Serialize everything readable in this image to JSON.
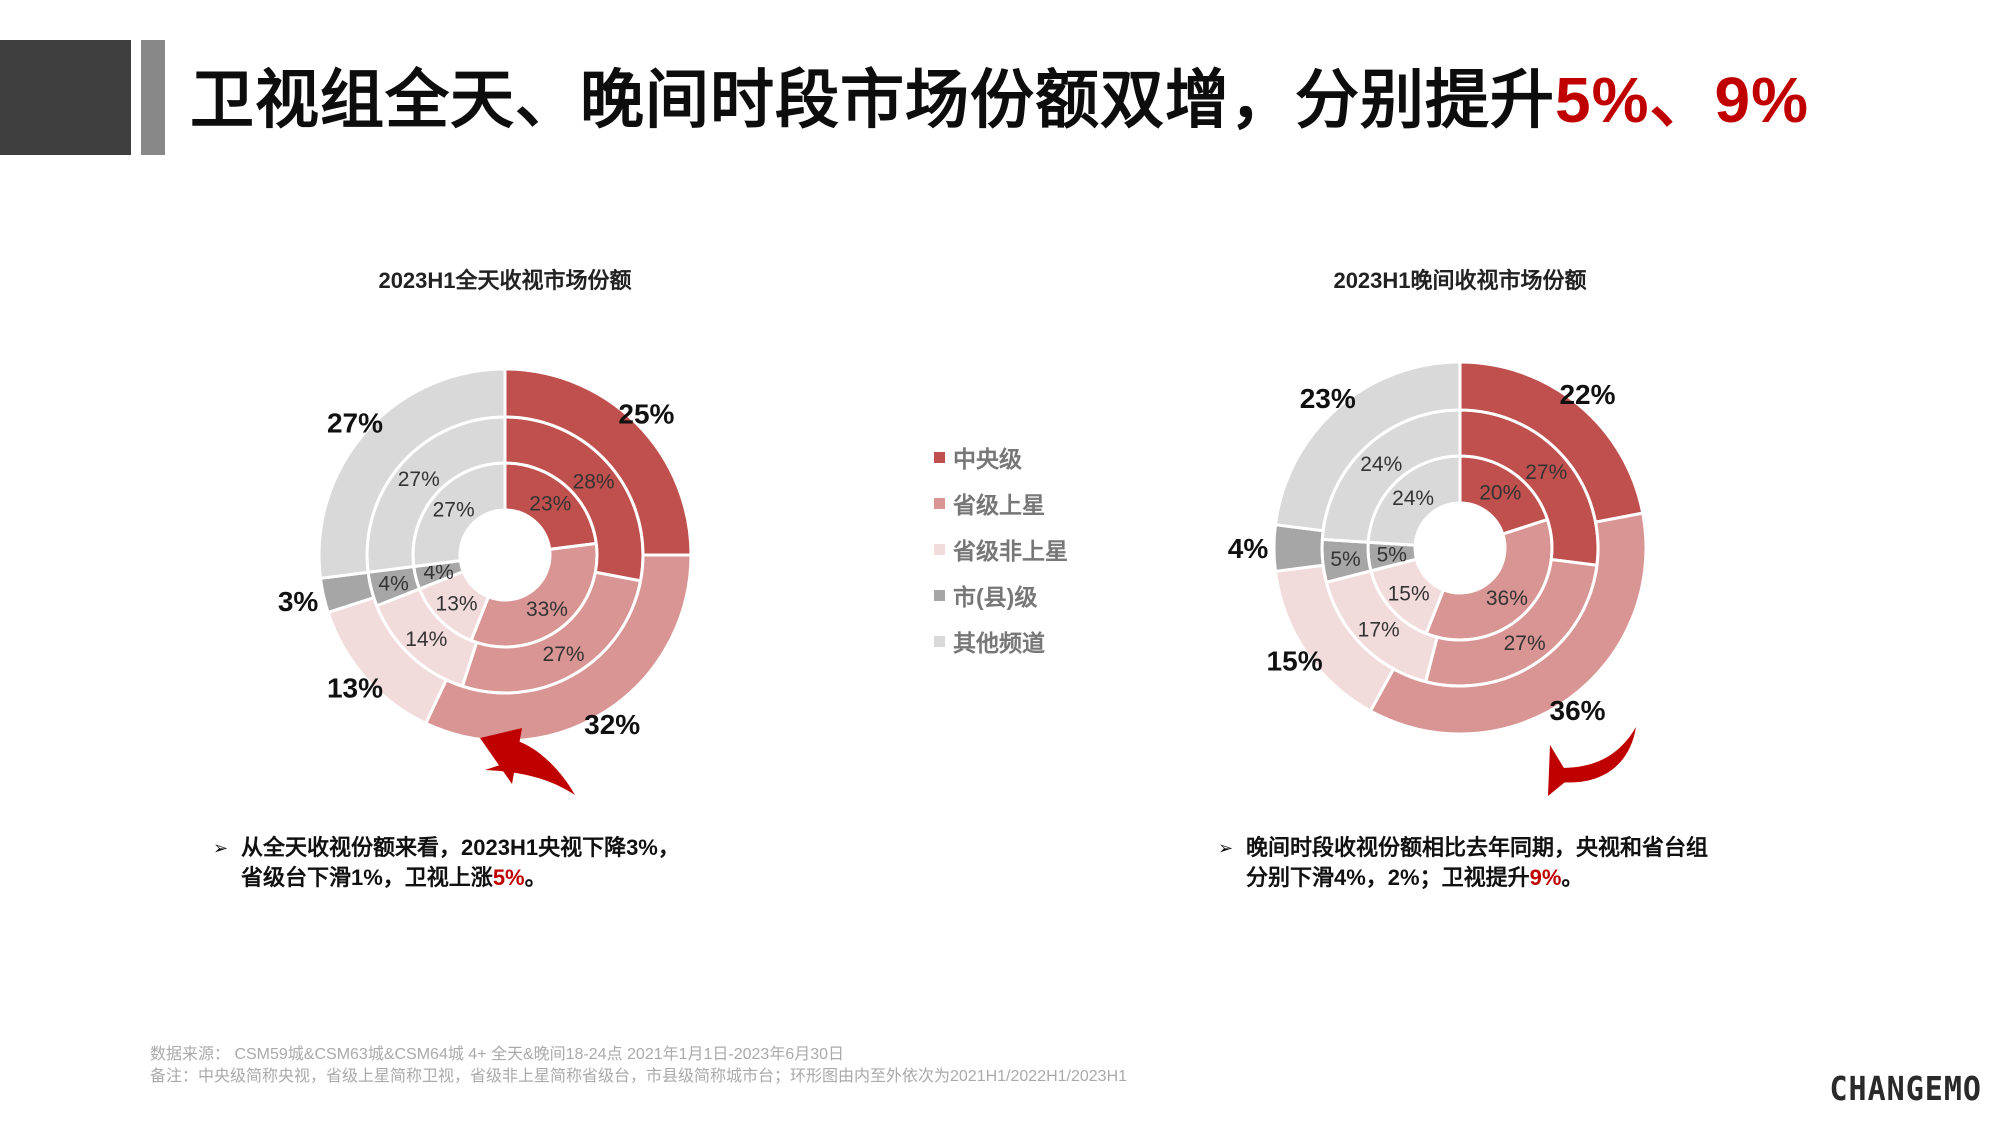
{
  "title": {
    "main": "卫视组全天、晚间时段市场份额双增，分别提升",
    "highlight": "5%、9%"
  },
  "legend": [
    {
      "label": "中央级",
      "color": "#c0504d"
    },
    {
      "label": "省级上星",
      "color": "#d99594"
    },
    {
      "label": "省级非上星",
      "color": "#f2dcdb"
    },
    {
      "label": "市(县)级",
      "color": "#a6a6a6"
    },
    {
      "label": "其他频道",
      "color": "#d9d9d9"
    }
  ],
  "chart_data": [
    {
      "type": "donut",
      "title": "2023H1全天收视市场份额",
      "categories": [
        "中央级",
        "省级上星",
        "省级非上星",
        "市(县)级",
        "其他频道"
      ],
      "rings": [
        {
          "name": "2021H1",
          "values": [
            23,
            33,
            13,
            4,
            27
          ],
          "labels": [
            "23%",
            "33%",
            "13%",
            "4%",
            "27%"
          ]
        },
        {
          "name": "2022H1",
          "values": [
            28,
            27,
            14,
            4,
            27
          ],
          "labels": [
            "28%",
            "27%",
            "14%",
            "4%",
            "27%"
          ]
        },
        {
          "name": "2023H1",
          "values": [
            25,
            32,
            13,
            3,
            27
          ],
          "labels": [
            "25%",
            "32%",
            "13%",
            "3%",
            "27%"
          ]
        }
      ]
    },
    {
      "type": "donut",
      "title": "2023H1晚间收视市场份额",
      "categories": [
        "中央级",
        "省级上星",
        "省级非上星",
        "市(县)级",
        "其他频道"
      ],
      "rings": [
        {
          "name": "2021H1",
          "values": [
            20,
            36,
            15,
            5,
            24
          ],
          "labels": [
            "20%",
            "36%",
            "15%",
            "5%",
            "24%"
          ]
        },
        {
          "name": "2022H1",
          "values": [
            27,
            27,
            17,
            5,
            24
          ],
          "labels": [
            "27%",
            "27%",
            "17%",
            "5%",
            "24%"
          ]
        },
        {
          "name": "2023H1",
          "values": [
            22,
            36,
            15,
            4,
            23
          ],
          "labels": [
            "22%",
            "36%",
            "15%",
            "4%",
            "23%"
          ]
        }
      ]
    }
  ],
  "notes": [
    {
      "bullet": "➢",
      "line1": "从全天收视份额来看，2023H1央视下降3%，",
      "line2_pre": "省级台下滑1%，卫视上涨",
      "line2_hl": "5%",
      "line2_post": "。"
    },
    {
      "bullet": "➢",
      "line1": "晚间时段收视份额相比去年同期，央视和省台组",
      "line2_pre": "分别下滑4%，2%；卫视提升",
      "line2_hl": "9%",
      "line2_post": "。"
    }
  ],
  "footer": {
    "source": "数据来源：  CSM59城&CSM63城&CSM64城  4+  全天&晚间18-24点   2021年1月1日-2023年6月30日",
    "remark": "备注：中央级简称央视，省级上星简称卫视，省级非上星简称省级台，市县级简称城市台；环形图由内至外依次为2021H1/2022H1/2023H1"
  },
  "logo": "CHANGEMO"
}
